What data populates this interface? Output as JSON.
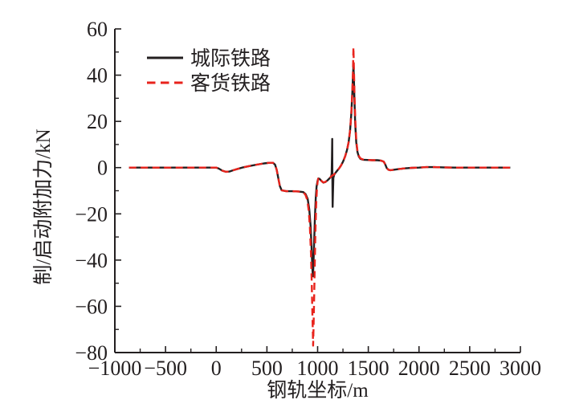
{
  "figure": {
    "background": "#ffffff",
    "axis_color": "#231f20"
  },
  "chart_data": {
    "type": "line",
    "title": "",
    "xlabel": "钢轨坐标/m",
    "ylabel": "制/启动附加力/kN",
    "xlim": [
      -1000,
      3000
    ],
    "ylim": [
      -80,
      60
    ],
    "xticks": [
      -1000,
      -500,
      0,
      500,
      1000,
      1500,
      2000,
      2500,
      3000
    ],
    "yticks": [
      60,
      40,
      20,
      0,
      -20,
      -40,
      -60,
      -80
    ],
    "x_minor_step": 250,
    "y_minor_step": 10,
    "grid": false,
    "legend_position": "upper-left-inside",
    "series": [
      {
        "name": "城际铁路",
        "color": "#231f20",
        "style": "solid",
        "points": [
          [
            -860,
            0
          ],
          [
            -600,
            0
          ],
          [
            -300,
            0
          ],
          [
            -100,
            0
          ],
          [
            0,
            0
          ],
          [
            25,
            -0.4
          ],
          [
            60,
            -1.3
          ],
          [
            95,
            -1.8
          ],
          [
            130,
            -1.7
          ],
          [
            170,
            -1.1
          ],
          [
            215,
            -0.5
          ],
          [
            265,
            0.1
          ],
          [
            330,
            0.7
          ],
          [
            400,
            1.3
          ],
          [
            470,
            1.8
          ],
          [
            525,
            2.1
          ],
          [
            560,
            2.1
          ],
          [
            580,
            1.3
          ],
          [
            597,
            -1
          ],
          [
            612,
            -4.5
          ],
          [
            628,
            -8
          ],
          [
            645,
            -9.8
          ],
          [
            690,
            -10.2
          ],
          [
            750,
            -10.2
          ],
          [
            810,
            -10.3
          ],
          [
            858,
            -10.6
          ],
          [
            882,
            -11.5
          ],
          [
            902,
            -13.5
          ],
          [
            918,
            -18
          ],
          [
            930,
            -25
          ],
          [
            940,
            -34
          ],
          [
            948,
            -43
          ],
          [
            953,
            -47
          ],
          [
            958,
            -43
          ],
          [
            966,
            -32
          ],
          [
            974,
            -21
          ],
          [
            982,
            -13
          ],
          [
            990,
            -8.2
          ],
          [
            999,
            -5.8
          ],
          [
            1008,
            -4.7
          ],
          [
            1020,
            -4.9
          ],
          [
            1038,
            -5.8
          ],
          [
            1058,
            -6.5
          ],
          [
            1078,
            -6.2
          ],
          [
            1098,
            -5.5
          ],
          [
            1118,
            -4.6
          ],
          [
            1133,
            -3.9
          ],
          [
            1139,
            -2.5
          ],
          [
            1142,
            5
          ],
          [
            1144,
            12.4
          ],
          [
            1146,
            -5
          ],
          [
            1148,
            -17
          ],
          [
            1151,
            -11
          ],
          [
            1155,
            -4.5
          ],
          [
            1163,
            -3.1
          ],
          [
            1176,
            -2.3
          ],
          [
            1193,
            -1.3
          ],
          [
            1212,
            -0.3
          ],
          [
            1232,
            1
          ],
          [
            1252,
            2.7
          ],
          [
            1272,
            4.9
          ],
          [
            1290,
            7.6
          ],
          [
            1306,
            11
          ],
          [
            1320,
            16
          ],
          [
            1332,
            23
          ],
          [
            1342,
            32
          ],
          [
            1349,
            40
          ],
          [
            1353,
            44
          ],
          [
            1357,
            40
          ],
          [
            1363,
            30
          ],
          [
            1371,
            19
          ],
          [
            1381,
            11
          ],
          [
            1393,
            6.8
          ],
          [
            1406,
            4.8
          ],
          [
            1422,
            3.8
          ],
          [
            1448,
            3.4
          ],
          [
            1490,
            3.3
          ],
          [
            1540,
            3.2
          ],
          [
            1590,
            3.2
          ],
          [
            1628,
            3
          ],
          [
            1652,
            2.6
          ],
          [
            1667,
            1.4
          ],
          [
            1682,
            -0.2
          ],
          [
            1698,
            -0.9
          ],
          [
            1718,
            -1.1
          ],
          [
            1755,
            -0.9
          ],
          [
            1805,
            -0.6
          ],
          [
            1865,
            -0.3
          ],
          [
            1930,
            -0.1
          ],
          [
            2000,
            0
          ],
          [
            2070,
            0.2
          ],
          [
            2150,
            0.2
          ],
          [
            2240,
            0.1
          ],
          [
            2350,
            0
          ],
          [
            2500,
            0
          ],
          [
            2700,
            0
          ],
          [
            2900,
            0
          ]
        ]
      },
      {
        "name": "客货铁路",
        "color": "#e8231c",
        "style": "dashed",
        "points": [
          [
            -860,
            0
          ],
          [
            -600,
            0
          ],
          [
            -300,
            0
          ],
          [
            -100,
            0
          ],
          [
            0,
            0
          ],
          [
            25,
            -0.4
          ],
          [
            60,
            -1.3
          ],
          [
            95,
            -1.8
          ],
          [
            130,
            -1.7
          ],
          [
            170,
            -1.1
          ],
          [
            215,
            -0.5
          ],
          [
            265,
            0.1
          ],
          [
            330,
            0.7
          ],
          [
            400,
            1.3
          ],
          [
            470,
            1.8
          ],
          [
            525,
            2.1
          ],
          [
            560,
            2.1
          ],
          [
            580,
            1.3
          ],
          [
            597,
            -1
          ],
          [
            612,
            -4.5
          ],
          [
            628,
            -8
          ],
          [
            645,
            -9.8
          ],
          [
            690,
            -10.2
          ],
          [
            750,
            -10.2
          ],
          [
            810,
            -10.3
          ],
          [
            858,
            -10.6
          ],
          [
            880,
            -11.8
          ],
          [
            898,
            -14
          ],
          [
            912,
            -18.5
          ],
          [
            924,
            -26
          ],
          [
            934,
            -37
          ],
          [
            942,
            -50
          ],
          [
            948,
            -62
          ],
          [
            953,
            -72
          ],
          [
            956,
            -77
          ],
          [
            960,
            -70
          ],
          [
            966,
            -56
          ],
          [
            972,
            -41
          ],
          [
            979,
            -27
          ],
          [
            986,
            -16
          ],
          [
            993,
            -9.5
          ],
          [
            1000,
            -6.2
          ],
          [
            1007,
            -4.3
          ],
          [
            1016,
            -4.3
          ],
          [
            1032,
            -5.4
          ],
          [
            1052,
            -6.4
          ],
          [
            1072,
            -6.3
          ],
          [
            1092,
            -5.7
          ],
          [
            1112,
            -4.8
          ],
          [
            1130,
            -4
          ],
          [
            1148,
            -3.3
          ],
          [
            1163,
            -3
          ],
          [
            1176,
            -2.3
          ],
          [
            1193,
            -1.3
          ],
          [
            1212,
            -0.3
          ],
          [
            1232,
            1
          ],
          [
            1252,
            2.7
          ],
          [
            1272,
            4.9
          ],
          [
            1290,
            7.6
          ],
          [
            1306,
            11
          ],
          [
            1320,
            16
          ],
          [
            1332,
            23
          ],
          [
            1342,
            33
          ],
          [
            1349,
            43
          ],
          [
            1353,
            52
          ],
          [
            1358,
            43
          ],
          [
            1364,
            31
          ],
          [
            1372,
            20
          ],
          [
            1382,
            11.5
          ],
          [
            1394,
            7
          ],
          [
            1407,
            5
          ],
          [
            1422,
            4
          ],
          [
            1448,
            3.5
          ],
          [
            1490,
            3.3
          ],
          [
            1540,
            3.2
          ],
          [
            1590,
            3.2
          ],
          [
            1628,
            3
          ],
          [
            1652,
            2.6
          ],
          [
            1667,
            1.4
          ],
          [
            1682,
            -0.2
          ],
          [
            1698,
            -0.9
          ],
          [
            1718,
            -1.1
          ],
          [
            1755,
            -0.9
          ],
          [
            1805,
            -0.6
          ],
          [
            1865,
            -0.3
          ],
          [
            1930,
            -0.1
          ],
          [
            2000,
            0
          ],
          [
            2070,
            0.2
          ],
          [
            2150,
            0.2
          ],
          [
            2240,
            0.1
          ],
          [
            2350,
            0
          ],
          [
            2500,
            0
          ],
          [
            2700,
            0
          ],
          [
            2900,
            0
          ]
        ]
      }
    ]
  }
}
